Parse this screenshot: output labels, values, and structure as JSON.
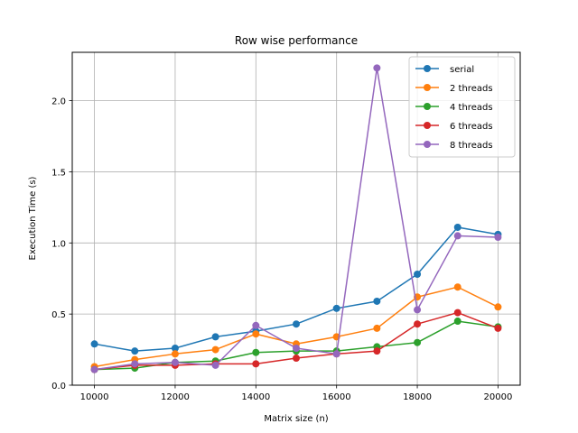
{
  "chart_data": {
    "type": "line",
    "title": "Row wise performance",
    "xlabel": "Matrix size (n)",
    "ylabel": "Execution Time (s)",
    "xlim": [
      9450,
      20550
    ],
    "ylim": [
      0,
      2.34
    ],
    "xticks": [
      10000,
      12000,
      14000,
      16000,
      18000,
      20000
    ],
    "yticks": [
      0.0,
      0.5,
      1.0,
      1.5,
      2.0
    ],
    "ytick_labels": [
      "0.0",
      "0.5",
      "1.0",
      "1.5",
      "2.0"
    ],
    "grid": true,
    "legend_position": "top-right",
    "x": [
      10000,
      11000,
      12000,
      13000,
      14000,
      15000,
      16000,
      17000,
      18000,
      19000,
      20000
    ],
    "series": [
      {
        "name": "serial",
        "color": "#1f77b4",
        "values": [
          0.29,
          0.24,
          0.26,
          0.34,
          0.38,
          0.43,
          0.54,
          0.59,
          0.78,
          1.11,
          1.06
        ]
      },
      {
        "name": "2 threads",
        "color": "#ff7f0e",
        "values": [
          0.13,
          0.18,
          0.22,
          0.25,
          0.36,
          0.29,
          0.34,
          0.4,
          0.62,
          0.69,
          0.55
        ]
      },
      {
        "name": "4 threads",
        "color": "#2ca02c",
        "values": [
          0.11,
          0.12,
          0.16,
          0.17,
          0.23,
          0.24,
          0.24,
          0.27,
          0.3,
          0.45,
          0.41
        ]
      },
      {
        "name": "6 threads",
        "color": "#d62728",
        "values": [
          0.11,
          0.14,
          0.14,
          0.15,
          0.15,
          0.19,
          0.22,
          0.24,
          0.43,
          0.51,
          0.4
        ]
      },
      {
        "name": "8 threads",
        "color": "#9467bd",
        "values": [
          0.11,
          0.15,
          0.16,
          0.14,
          0.42,
          0.26,
          0.22,
          2.23,
          0.53,
          1.05,
          1.04
        ]
      }
    ]
  }
}
